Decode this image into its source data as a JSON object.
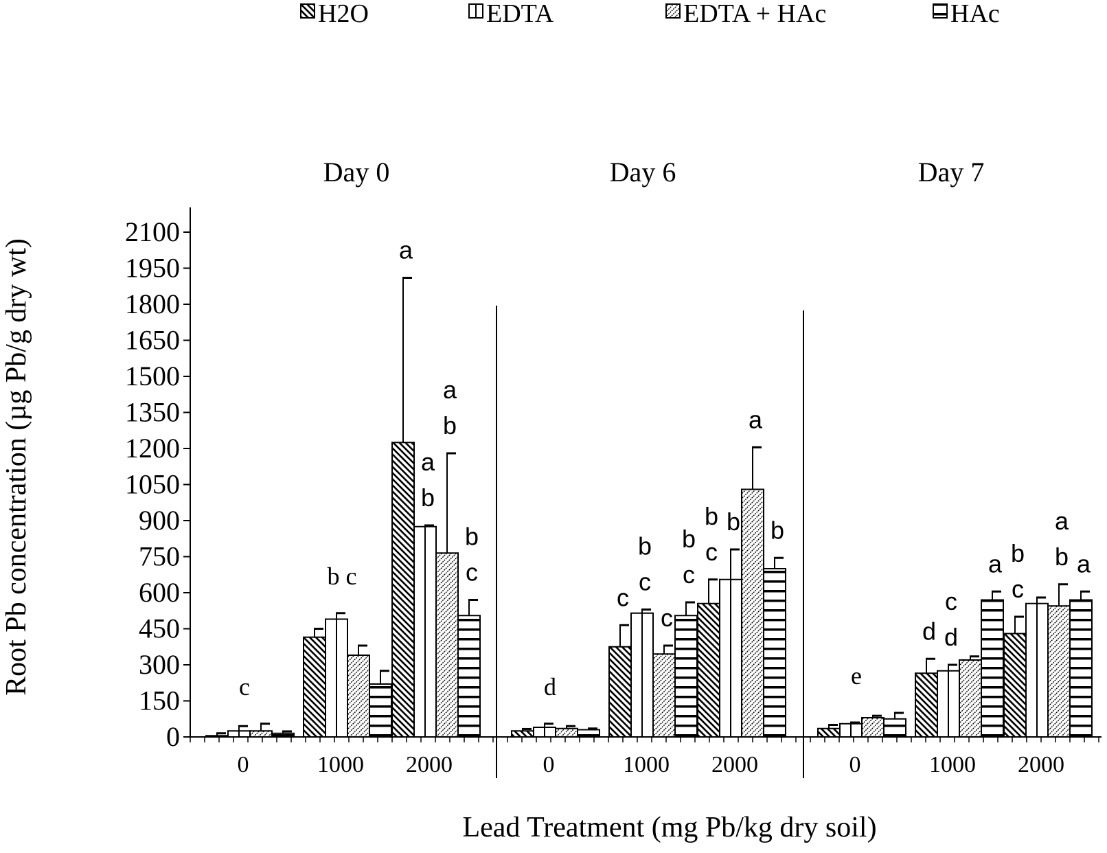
{
  "chart_data": {
    "type": "bar",
    "ylabel": "Root Pb concentration (µg Pb/g dry wt)",
    "xlabel": "Lead Treatment (mg Pb/kg dry soil)",
    "ylim": [
      0,
      2100
    ],
    "yticks": [
      "0",
      "150",
      "300",
      "450",
      "600",
      "750",
      "900",
      "1050",
      "1200",
      "1350",
      "1500",
      "1650",
      "1800",
      "1950",
      "2100"
    ],
    "legend": [
      {
        "name": "H2O",
        "pattern": "diag-back"
      },
      {
        "name": "EDTA",
        "pattern": "vertical"
      },
      {
        "name": "EDTA + HAc",
        "pattern": "diag-fwd"
      },
      {
        "name": "HAc",
        "pattern": "horizontal"
      }
    ],
    "categories": [
      "0",
      "1000",
      "2000"
    ],
    "panels": [
      {
        "title": "Day 0",
        "groups": [
          {
            "category": "0",
            "letters": [
              "c"
            ],
            "bars": [
              {
                "series": "H2O",
                "value": 5,
                "error": 10
              },
              {
                "series": "EDTA",
                "value": 25,
                "error": 20
              },
              {
                "series": "EDTA + HAc",
                "value": 25,
                "error": 30
              },
              {
                "series": "HAc",
                "value": 15,
                "error": 8
              }
            ]
          },
          {
            "category": "1000",
            "letters": [
              "b",
              "c"
            ],
            "bars": [
              {
                "series": "H2O",
                "value": 415,
                "error": 35
              },
              {
                "series": "EDTA",
                "value": 490,
                "error": 25
              },
              {
                "series": "EDTA + HAc",
                "value": 340,
                "error": 40
              },
              {
                "series": "HAc",
                "value": 220,
                "error": 55
              }
            ]
          },
          {
            "category": "2000",
            "letters": [],
            "bars": [
              {
                "series": "H2O",
                "value": 1225,
                "error": 685,
                "letters": [
                  "a"
                ]
              },
              {
                "series": "EDTA",
                "value": 875,
                "error": 5,
                "letters": [
                  "a",
                  "b"
                ]
              },
              {
                "series": "EDTA + HAc",
                "value": 765,
                "error": 415,
                "letters": [
                  "a",
                  "b"
                ]
              },
              {
                "series": "HAc",
                "value": 505,
                "error": 65,
                "letters": [
                  "b",
                  "c"
                ]
              }
            ]
          }
        ]
      },
      {
        "title": "Day 6",
        "groups": [
          {
            "category": "0",
            "letters": [
              "d"
            ],
            "bars": [
              {
                "series": "H2O",
                "value": 25,
                "error": 8
              },
              {
                "series": "EDTA",
                "value": 40,
                "error": 15
              },
              {
                "series": "EDTA + HAc",
                "value": 35,
                "error": 10
              },
              {
                "series": "HAc",
                "value": 30,
                "error": 5
              }
            ]
          },
          {
            "category": "1000",
            "letters": [],
            "bars": [
              {
                "series": "H2O",
                "value": 375,
                "error": 90,
                "letters": [
                  "c"
                ]
              },
              {
                "series": "EDTA",
                "value": 515,
                "error": 15,
                "letters": [
                  "b",
                  "c"
                ]
              },
              {
                "series": "EDTA + HAc",
                "value": 345,
                "error": 35,
                "letters": [
                  "c"
                ]
              },
              {
                "series": "HAc",
                "value": 505,
                "error": 55,
                "letters": [
                  "b",
                  "c"
                ]
              }
            ]
          },
          {
            "category": "2000",
            "letters": [],
            "bars": [
              {
                "series": "H2O",
                "value": 555,
                "error": 100,
                "letters": [
                  "b",
                  "c"
                ]
              },
              {
                "series": "EDTA",
                "value": 655,
                "error": 125,
                "letters": [
                  "b"
                ]
              },
              {
                "series": "EDTA + HAc",
                "value": 1030,
                "error": 175,
                "letters": [
                  "a"
                ]
              },
              {
                "series": "HAc",
                "value": 700,
                "error": 45,
                "letters": [
                  "b"
                ]
              }
            ]
          }
        ]
      },
      {
        "title": "Day 7",
        "groups": [
          {
            "category": "0",
            "letters": [
              "e"
            ],
            "bars": [
              {
                "series": "H2O",
                "value": 35,
                "error": 15
              },
              {
                "series": "EDTA",
                "value": 55,
                "error": 5
              },
              {
                "series": "EDTA + HAc",
                "value": 80,
                "error": 8
              },
              {
                "series": "HAc",
                "value": 75,
                "error": 25
              }
            ]
          },
          {
            "category": "1000",
            "letters": [],
            "bars": [
              {
                "series": "H2O",
                "value": 265,
                "error": 60,
                "letters": [
                  "d"
                ]
              },
              {
                "series": "EDTA",
                "value": 275,
                "error": 25,
                "letters": [
                  "c",
                  "d"
                ]
              },
              {
                "series": "EDTA + HAc",
                "value": 320,
                "error": 15
              },
              {
                "series": "HAc",
                "value": 570,
                "error": 35,
                "letters": [
                  "a"
                ]
              }
            ]
          },
          {
            "category": "2000",
            "letters": [],
            "bars": [
              {
                "series": "H2O",
                "value": 430,
                "error": 70,
                "letters": [
                  "b",
                  "c"
                ]
              },
              {
                "series": "EDTA",
                "value": 555,
                "error": 25
              },
              {
                "series": "EDTA + HAc",
                "value": 545,
                "error": 90,
                "letters": [
                  "a",
                  "b"
                ]
              },
              {
                "series": "HAc",
                "value": 570,
                "error": 35,
                "letters": [
                  "a"
                ]
              }
            ]
          }
        ]
      }
    ]
  }
}
